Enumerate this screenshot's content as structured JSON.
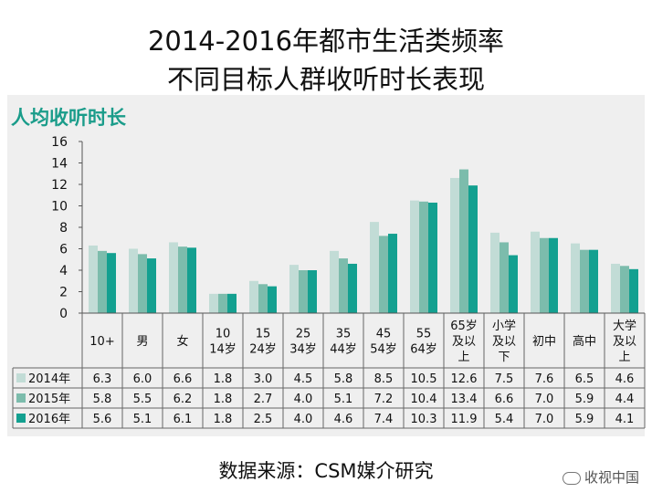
{
  "header": {
    "title_line1": "2014-2016年都市生活类频率",
    "title_line2": "不同目标人群收听时长表现",
    "subtitle": "人均收听时长"
  },
  "footer": {
    "source": "数据来源：CSM媒介研究",
    "watermark": "收视中国"
  },
  "colors": {
    "s2014": "#c2dcd6",
    "s2015": "#7cbcac",
    "s2016": "#13a090",
    "accent": "#1a9c8a"
  },
  "chart_data": {
    "type": "bar",
    "ylim": [
      0,
      16
    ],
    "yticks": [
      "0",
      "2",
      "4",
      "6",
      "8",
      "10",
      "12",
      "14",
      "16"
    ],
    "grid": false,
    "categories": [
      [
        "10+"
      ],
      [
        "男"
      ],
      [
        "女"
      ],
      [
        "10",
        "14岁"
      ],
      [
        "15",
        "24岁"
      ],
      [
        "25",
        "34岁"
      ],
      [
        "35",
        "44岁"
      ],
      [
        "45",
        "54岁"
      ],
      [
        "55",
        "64岁"
      ],
      [
        "65岁",
        "及以",
        "上"
      ],
      [
        "小学",
        "及以",
        "下"
      ],
      [
        "初中"
      ],
      [
        "高中"
      ],
      [
        "大学",
        "及以",
        "上"
      ]
    ],
    "series": [
      {
        "name": "2014年",
        "values": [
          6.3,
          6.0,
          6.6,
          1.8,
          3.0,
          4.5,
          5.8,
          8.5,
          10.5,
          12.6,
          7.5,
          7.6,
          6.5,
          4.6
        ],
        "labels": [
          "6.3",
          "6.0",
          "6.6",
          "1.8",
          "3.0",
          "4.5",
          "5.8",
          "8.5",
          "10.5",
          "12.6",
          "7.5",
          "7.6",
          "6.5",
          "4.6"
        ]
      },
      {
        "name": "2015年",
        "values": [
          5.8,
          5.5,
          6.2,
          1.8,
          2.7,
          4.0,
          5.1,
          7.2,
          10.4,
          13.4,
          6.6,
          7.0,
          5.9,
          4.4
        ],
        "labels": [
          "5.8",
          "5.5",
          "6.2",
          "1.8",
          "2.7",
          "4.0",
          "5.1",
          "7.2",
          "10.4",
          "13.4",
          "6.6",
          "7.0",
          "5.9",
          "4.4"
        ]
      },
      {
        "name": "2016年",
        "values": [
          5.6,
          5.1,
          6.1,
          1.8,
          2.5,
          4.0,
          4.6,
          7.4,
          10.3,
          11.9,
          5.4,
          7.0,
          5.9,
          4.1
        ],
        "labels": [
          "5.6",
          "5.1",
          "6.1",
          "1.8",
          "2.5",
          "4.0",
          "4.6",
          "7.4",
          "10.3",
          "11.9",
          "5.4",
          "7.0",
          "5.9",
          "4.1"
        ]
      }
    ]
  }
}
